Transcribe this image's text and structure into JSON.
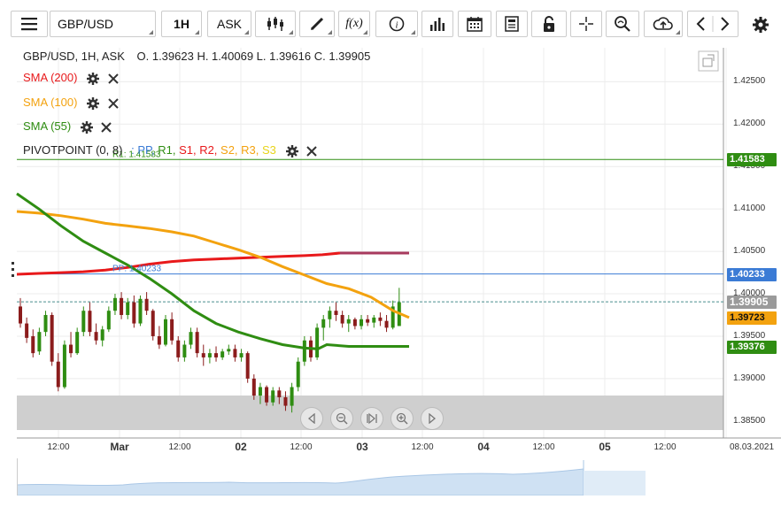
{
  "toolbar": {
    "symbol": "GBP/USD",
    "interval": "1H",
    "price_side": "ASK",
    "fx_label": "f(x)"
  },
  "header": {
    "instrument_line": "GBP/USD, 1H, ASK",
    "ohlc": "O. 1.39623 H. 1.40069 L. 1.39616 C. 1.39905"
  },
  "indicators": [
    {
      "label": "SMA (200)",
      "color": "#e8191b"
    },
    {
      "label": "SMA (100)",
      "color": "#f3a20f"
    },
    {
      "label": "SMA (55)",
      "color": "#2f8d12"
    }
  ],
  "pivot": {
    "prefix": "PIVOTPOINT (0, 8)",
    "sep": ":",
    "items": [
      {
        "label": "PP,",
        "color": "#3b7bd5"
      },
      {
        "label": "R1,",
        "color": "#2f8d12"
      },
      {
        "label": "S1,",
        "color": "#e8191b"
      },
      {
        "label": "R2,",
        "color": "#e8191b"
      },
      {
        "label": "S2,",
        "color": "#f3a20f"
      },
      {
        "label": "R3,",
        "color": "#f3a20f"
      },
      {
        "label": "S3",
        "color": "#e8d41a"
      }
    ],
    "r1_label": "R1: 1.41583",
    "pp_label": "PP: 1.40233"
  },
  "chart_data": {
    "type": "candlestick",
    "y_ticks": [
      "1.42500",
      "1.42000",
      "1.41500",
      "1.41000",
      "1.40500",
      "1.40000",
      "1.39500",
      "1.39000",
      "1.38500"
    ],
    "ylim": [
      1.383,
      1.429
    ],
    "x_ticks": [
      {
        "label": "12:00",
        "bold": false
      },
      {
        "label": "Mar",
        "bold": true
      },
      {
        "label": "12:00",
        "bold": false
      },
      {
        "label": "02",
        "bold": true
      },
      {
        "label": "12:00",
        "bold": false
      },
      {
        "label": "03",
        "bold": true
      },
      {
        "label": "12:00",
        "bold": false
      },
      {
        "label": "04",
        "bold": true
      },
      {
        "label": "12:00",
        "bold": false
      },
      {
        "label": "05",
        "bold": true
      },
      {
        "label": "12:00",
        "bold": false
      },
      {
        "label": "08.03.2021",
        "bold": false
      }
    ],
    "price_labels": [
      {
        "value": "1.41583",
        "bg": "#2f8d12",
        "fg": "#ffffff"
      },
      {
        "value": "1.40233",
        "bg": "#3b7bd5",
        "fg": "#ffffff"
      },
      {
        "value": "1.39905",
        "bg": "#9a9a9a",
        "fg": "#ffffff"
      },
      {
        "value": "1.39723",
        "bg": "#f3a20f",
        "fg": "#111111"
      },
      {
        "value": "1.39376",
        "bg": "#2f8d12",
        "fg": "#ffffff"
      }
    ],
    "levels": {
      "R1": 1.41583,
      "PP": 1.40233,
      "last": 1.39905
    },
    "sma200": [
      [
        0,
        1.4023
      ],
      [
        25,
        1.4024
      ],
      [
        50,
        1.4025
      ],
      [
        75,
        1.4026
      ],
      [
        100,
        1.4028
      ],
      [
        125,
        1.4031
      ],
      [
        150,
        1.4035
      ],
      [
        175,
        1.4038
      ],
      [
        200,
        1.404
      ],
      [
        225,
        1.4041
      ],
      [
        250,
        1.4042
      ],
      [
        275,
        1.4043
      ],
      [
        300,
        1.4044
      ],
      [
        325,
        1.4045
      ],
      [
        345,
        1.4046
      ],
      [
        365,
        1.4048
      ],
      [
        400,
        1.4048
      ],
      [
        443,
        1.4048
      ]
    ],
    "sma100": [
      [
        0,
        1.4097
      ],
      [
        25,
        1.4095
      ],
      [
        50,
        1.4092
      ],
      [
        75,
        1.4088
      ],
      [
        100,
        1.4083
      ],
      [
        125,
        1.408
      ],
      [
        150,
        1.4077
      ],
      [
        175,
        1.4073
      ],
      [
        200,
        1.4068
      ],
      [
        225,
        1.406
      ],
      [
        250,
        1.4052
      ],
      [
        275,
        1.4043
      ],
      [
        300,
        1.4032
      ],
      [
        325,
        1.4022
      ],
      [
        350,
        1.4012
      ],
      [
        375,
        1.4006
      ],
      [
        400,
        1.3996
      ],
      [
        425,
        1.398
      ],
      [
        443,
        1.3972
      ]
    ],
    "sma55": [
      [
        0,
        1.4118
      ],
      [
        25,
        1.41
      ],
      [
        50,
        1.408
      ],
      [
        75,
        1.4062
      ],
      [
        100,
        1.4048
      ],
      [
        125,
        1.4034
      ],
      [
        150,
        1.4018
      ],
      [
        175,
        1.4
      ],
      [
        200,
        1.398
      ],
      [
        225,
        1.3965
      ],
      [
        250,
        1.3955
      ],
      [
        275,
        1.3947
      ],
      [
        300,
        1.394
      ],
      [
        325,
        1.3936
      ],
      [
        340,
        1.3935
      ],
      [
        350,
        1.394
      ],
      [
        375,
        1.3938
      ],
      [
        400,
        1.3938
      ],
      [
        443,
        1.3938
      ]
    ],
    "candles": [
      [
        1.3985,
        1.3995,
        1.396,
        1.3965
      ],
      [
        1.3965,
        1.3972,
        1.3942,
        1.3948
      ],
      [
        1.395,
        1.3958,
        1.3925,
        1.393
      ],
      [
        1.3932,
        1.396,
        1.3928,
        1.3955
      ],
      [
        1.3955,
        1.398,
        1.395,
        1.3975
      ],
      [
        1.3975,
        1.3978,
        1.3915,
        1.392
      ],
      [
        1.392,
        1.393,
        1.3885,
        1.389
      ],
      [
        1.389,
        1.3945,
        1.3888,
        1.394
      ],
      [
        1.394,
        1.3955,
        1.3925,
        1.393
      ],
      [
        1.393,
        1.396,
        1.3928,
        1.3955
      ],
      [
        1.3955,
        1.3985,
        1.395,
        1.398
      ],
      [
        1.398,
        1.399,
        1.395,
        1.3955
      ],
      [
        1.3955,
        1.3965,
        1.394,
        1.3945
      ],
      [
        1.3945,
        1.3962,
        1.3938,
        1.3958
      ],
      [
        1.3958,
        1.3985,
        1.3955,
        1.398
      ],
      [
        1.398,
        1.4,
        1.3975,
        1.3995
      ],
      [
        1.3995,
        1.4002,
        1.397,
        1.3975
      ],
      [
        1.3975,
        1.3995,
        1.397,
        1.399
      ],
      [
        1.399,
        1.3998,
        1.396,
        1.3965
      ],
      [
        1.3965,
        1.3998,
        1.3962,
        1.3994
      ],
      [
        1.3994,
        1.4002,
        1.3975,
        1.398
      ],
      [
        1.398,
        1.3982,
        1.3945,
        1.395
      ],
      [
        1.395,
        1.3962,
        1.3935,
        1.394
      ],
      [
        1.394,
        1.3975,
        1.3938,
        1.397
      ],
      [
        1.397,
        1.3978,
        1.394,
        1.3945
      ],
      [
        1.3945,
        1.395,
        1.392,
        1.3925
      ],
      [
        1.3925,
        1.3945,
        1.392,
        1.394
      ],
      [
        1.394,
        1.396,
        1.3935,
        1.3955
      ],
      [
        1.3955,
        1.396,
        1.3925,
        1.393
      ],
      [
        1.393,
        1.394,
        1.3915,
        1.3925
      ],
      [
        1.3925,
        1.3935,
        1.3918,
        1.393
      ],
      [
        1.393,
        1.3938,
        1.392,
        1.3925
      ],
      [
        1.3925,
        1.3935,
        1.3922,
        1.3932
      ],
      [
        1.3932,
        1.394,
        1.3928,
        1.3935
      ],
      [
        1.3935,
        1.394,
        1.392,
        1.3925
      ],
      [
        1.3925,
        1.3935,
        1.392,
        1.393
      ],
      [
        1.393,
        1.3932,
        1.3895,
        1.39
      ],
      [
        1.39,
        1.3905,
        1.3875,
        1.388
      ],
      [
        1.388,
        1.3895,
        1.387,
        1.389
      ],
      [
        1.389,
        1.3892,
        1.3868,
        1.3872
      ],
      [
        1.3872,
        1.389,
        1.3868,
        1.3886
      ],
      [
        1.3886,
        1.389,
        1.387,
        1.3878
      ],
      [
        1.3878,
        1.3885,
        1.3862,
        1.3868
      ],
      [
        1.3868,
        1.3895,
        1.386,
        1.389
      ],
      [
        1.389,
        1.3925,
        1.3885,
        1.392
      ],
      [
        1.392,
        1.395,
        1.3915,
        1.3945
      ],
      [
        1.3945,
        1.395,
        1.392,
        1.3925
      ],
      [
        1.3925,
        1.3965,
        1.3922,
        1.396
      ],
      [
        1.396,
        1.3975,
        1.3945,
        1.397
      ],
      [
        1.397,
        1.3985,
        1.396,
        1.398
      ],
      [
        1.398,
        1.399,
        1.3968,
        1.3975
      ],
      [
        1.3975,
        1.398,
        1.396,
        1.3965
      ],
      [
        1.3965,
        1.3975,
        1.3955,
        1.397
      ],
      [
        1.397,
        1.3972,
        1.3958,
        1.3962
      ],
      [
        1.3962,
        1.3975,
        1.3958,
        1.397
      ],
      [
        1.397,
        1.3975,
        1.3962,
        1.3966
      ],
      [
        1.3966,
        1.3975,
        1.396,
        1.3972
      ],
      [
        1.3972,
        1.3978,
        1.3962,
        1.3968
      ],
      [
        1.3968,
        1.3975,
        1.3955,
        1.396
      ],
      [
        1.396,
        1.3992,
        1.3958,
        1.3985
      ],
      [
        1.3962,
        1.4007,
        1.3962,
        1.399
      ]
    ]
  }
}
